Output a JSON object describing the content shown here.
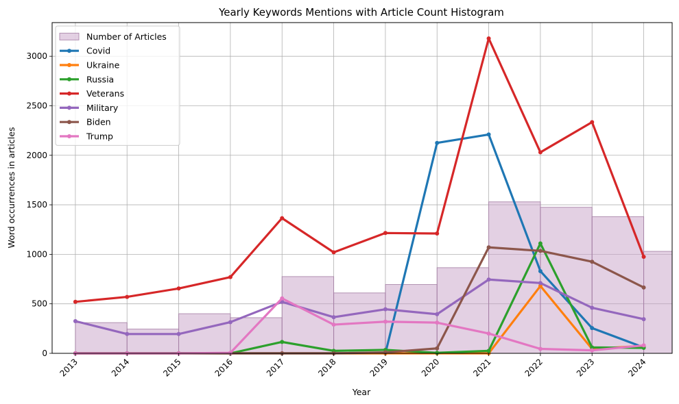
{
  "chart_data": {
    "type": "line",
    "title": "Yearly Keywords Mentions with Article Count Histogram",
    "xlabel": "Year",
    "ylabel": "Word occurrences in articles",
    "x": [
      2013,
      2014,
      2015,
      2016,
      2017,
      2018,
      2019,
      2020,
      2021,
      2022,
      2023,
      2024
    ],
    "xlim": [
      2012.55,
      2024.55
    ],
    "ylim": [
      0,
      3340
    ],
    "yticks": [
      0,
      500,
      1000,
      1500,
      2000,
      2500,
      3000
    ],
    "grid": true,
    "legend": "top-left",
    "histogram": {
      "name": "Number of Articles",
      "color": "#c8a2c8",
      "edge": "#a37ca3",
      "values": [
        310,
        245,
        400,
        360,
        775,
        610,
        695,
        865,
        1530,
        1475,
        1380,
        1030
      ]
    },
    "series": [
      {
        "name": "Covid",
        "color": "#1f77b4",
        "values": [
          0,
          0,
          0,
          0,
          0,
          0,
          0,
          2125,
          2210,
          830,
          255,
          60
        ]
      },
      {
        "name": "Ukraine",
        "color": "#ff7f0e",
        "values": [
          0,
          0,
          0,
          0,
          0,
          0,
          0,
          0,
          0,
          680,
          45,
          75
        ]
      },
      {
        "name": "Russia",
        "color": "#2ca02c",
        "values": [
          0,
          0,
          0,
          0,
          115,
          25,
          35,
          5,
          25,
          1110,
          60,
          55
        ]
      },
      {
        "name": "Veterans",
        "color": "#d62728",
        "values": [
          520,
          570,
          655,
          770,
          1365,
          1020,
          1215,
          1210,
          3180,
          2030,
          2335,
          975
        ]
      },
      {
        "name": "Military",
        "color": "#9467bd",
        "values": [
          325,
          195,
          195,
          315,
          520,
          365,
          445,
          395,
          745,
          710,
          460,
          345
        ]
      },
      {
        "name": "Biden",
        "color": "#8c564b",
        "values": [
          0,
          0,
          0,
          0,
          0,
          0,
          10,
          50,
          1070,
          1035,
          925,
          665
        ]
      },
      {
        "name": "Trump",
        "color": "#e377c2",
        "values": [
          0,
          0,
          0,
          5,
          555,
          290,
          320,
          310,
          200,
          45,
          30,
          80
        ]
      }
    ]
  }
}
